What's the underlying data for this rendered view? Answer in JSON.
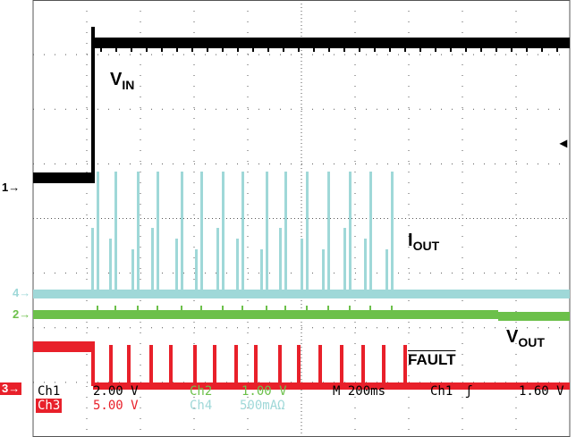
{
  "labels": {
    "vin_main": "V",
    "vin_sub": "IN",
    "iout_main": "I",
    "iout_sub": "OUT",
    "vout_main": "V",
    "vout_sub": "OUT",
    "fault": "FAULT"
  },
  "markers": {
    "ch1": "1→",
    "ch4": "4→",
    "ch2": "2→",
    "ch3": "3→",
    "trigger_level": "◂"
  },
  "readout": {
    "ch1_name": "Ch1",
    "ch1_scale": "2.00 V",
    "ch2_name": "Ch2",
    "ch2_scale": "1.00 V",
    "ch3_name": "Ch3",
    "ch3_scale": "5.00 V",
    "ch4_name": "Ch4",
    "ch4_scale": "500mAΩ",
    "timebase": "M 200ms",
    "trigger_source": "Ch1",
    "trigger_slope": "ʃ",
    "trigger_level": "1.60 V"
  },
  "colors": {
    "ch1": "#000000",
    "ch2": "#6cc04a",
    "ch3": "#e8202a",
    "ch4": "#9fd8d8",
    "grid": "#555555",
    "background": "#ffffff"
  }
}
